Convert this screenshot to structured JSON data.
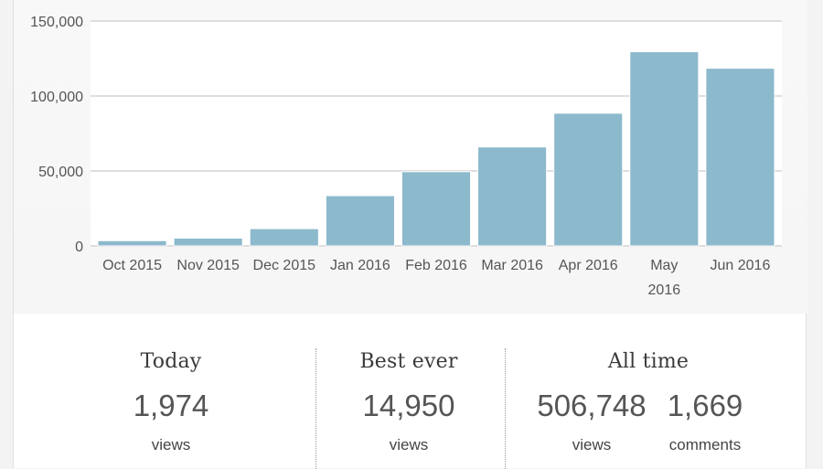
{
  "chart_data": {
    "type": "bar",
    "categories": [
      "Oct 2015",
      "Nov 2015",
      "Dec 2015",
      "Jan 2016",
      "Feb 2016",
      "Mar 2016",
      "Apr 2016",
      "May 2016",
      "Jun 2016"
    ],
    "category_lines": [
      [
        "Oct 2015"
      ],
      [
        "Nov 2015"
      ],
      [
        "Dec 2015"
      ],
      [
        "Jan 2016"
      ],
      [
        "Feb 2016"
      ],
      [
        "Mar 2016"
      ],
      [
        "Apr 2016"
      ],
      [
        "May",
        "2016"
      ],
      [
        "Jun 2016"
      ]
    ],
    "values": [
      3500,
      5200,
      11500,
      33500,
      49500,
      66000,
      88500,
      129500,
      118500
    ],
    "yticks": [
      0,
      50000,
      100000,
      150000
    ],
    "ytick_labels": [
      "0",
      "50,000",
      "100,000",
      "150,000"
    ],
    "ylim": [
      0,
      150000
    ],
    "grid": true,
    "bar_color": "#8cb9cc",
    "xlabel": "",
    "ylabel": ""
  },
  "stats": {
    "today": {
      "title": "Today",
      "value": "1,974",
      "unit": "views"
    },
    "best": {
      "title": "Best ever",
      "value": "14,950",
      "unit": "views"
    },
    "alltime": {
      "title": "All time",
      "views_value": "506,748",
      "views_unit": "views",
      "comments_value": "1,669",
      "comments_unit": "comments"
    }
  }
}
